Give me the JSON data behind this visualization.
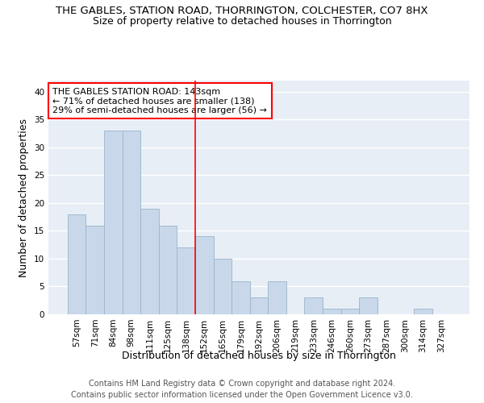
{
  "title1": "THE GABLES, STATION ROAD, THORRINGTON, COLCHESTER, CO7 8HX",
  "title2": "Size of property relative to detached houses in Thorrington",
  "xlabel": "Distribution of detached houses by size in Thorrington",
  "ylabel": "Number of detached properties",
  "categories": [
    "57sqm",
    "71sqm",
    "84sqm",
    "98sqm",
    "111sqm",
    "125sqm",
    "138sqm",
    "152sqm",
    "165sqm",
    "179sqm",
    "192sqm",
    "206sqm",
    "219sqm",
    "233sqm",
    "246sqm",
    "260sqm",
    "273sqm",
    "287sqm",
    "300sqm",
    "314sqm",
    "327sqm"
  ],
  "values": [
    18,
    16,
    33,
    33,
    19,
    16,
    12,
    14,
    10,
    6,
    3,
    6,
    0,
    3,
    1,
    1,
    3,
    0,
    0,
    1,
    0
  ],
  "bar_color": "#c8d8ea",
  "bar_edge_color": "#9ab4cc",
  "vline_color": "red",
  "vline_index": 6.5,
  "annotation_text": "THE GABLES STATION ROAD: 143sqm\n← 71% of detached houses are smaller (138)\n29% of semi-detached houses are larger (56) →",
  "annotation_box_color": "white",
  "annotation_box_edge_color": "red",
  "ylim": [
    0,
    42
  ],
  "yticks": [
    0,
    5,
    10,
    15,
    20,
    25,
    30,
    35,
    40
  ],
  "background_color": "#e8eef6",
  "grid_color": "white",
  "footer1": "Contains HM Land Registry data © Crown copyright and database right 2024.",
  "footer2": "Contains public sector information licensed under the Open Government Licence v3.0.",
  "title1_fontsize": 9.5,
  "title2_fontsize": 9,
  "axis_label_fontsize": 9,
  "tick_fontsize": 7.5,
  "annotation_fontsize": 8,
  "footer_fontsize": 7
}
